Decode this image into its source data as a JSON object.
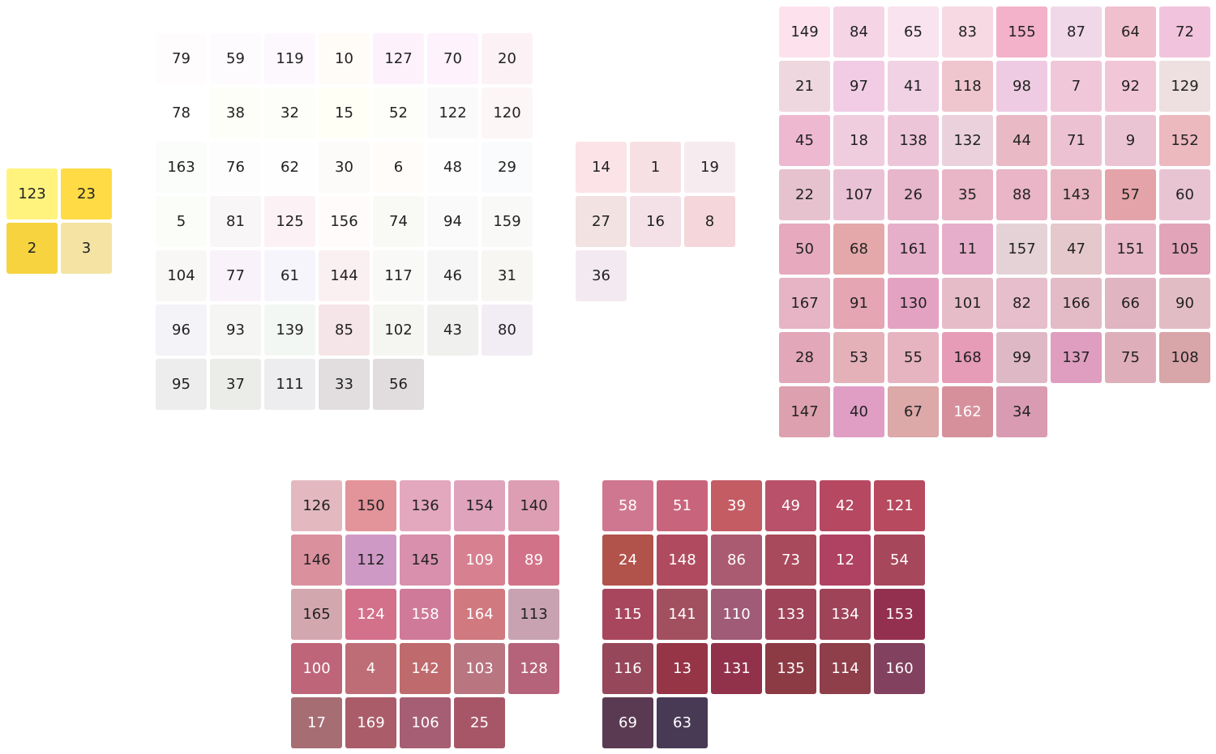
{
  "groups": [
    {
      "name": "yellow-group",
      "cells": [
        [
          {
            "label": "123",
            "color": "#FFF37E"
          },
          {
            "label": "23",
            "color": "#FFDB45"
          }
        ],
        [
          {
            "label": "2",
            "color": "#F6D33F"
          },
          {
            "label": "3",
            "color": "#F4E3A3"
          }
        ]
      ]
    },
    {
      "name": "neutral-group",
      "cells": [
        [
          {
            "label": "79",
            "color": "#FFFCFD"
          },
          {
            "label": "59",
            "color": "#FEFBFE"
          },
          {
            "label": "119",
            "color": "#FCF8FE"
          },
          {
            "label": "10",
            "color": "#FFFBF7"
          },
          {
            "label": "127",
            "color": "#FDF2FC"
          },
          {
            "label": "70",
            "color": "#FEF2FC"
          },
          {
            "label": "20",
            "color": "#FCF2F5"
          }
        ],
        [
          {
            "label": "78",
            "color": "#FFFFFF"
          },
          {
            "label": "38",
            "color": "#FDFEF7"
          },
          {
            "label": "32",
            "color": "#FDFDF9"
          },
          {
            "label": "15",
            "color": "#FFFFF6"
          },
          {
            "label": "52",
            "color": "#FDFDF9"
          },
          {
            "label": "122",
            "color": "#FAFAFA"
          },
          {
            "label": "120",
            "color": "#FDF6F6"
          }
        ],
        [
          {
            "label": "163",
            "color": "#FAFDFA"
          },
          {
            "label": "76",
            "color": "#FDFDFE"
          },
          {
            "label": "62",
            "color": "#FEFEFE"
          },
          {
            "label": "30",
            "color": "#FCFBF9"
          },
          {
            "label": "6",
            "color": "#FFFCF9"
          },
          {
            "label": "48",
            "color": "#FDFDFD"
          },
          {
            "label": "29",
            "color": "#FAFBFC"
          }
        ],
        [
          {
            "label": "5",
            "color": "#FBFDF8"
          },
          {
            "label": "81",
            "color": "#F9F6F7"
          },
          {
            "label": "125",
            "color": "#FCF2F6"
          },
          {
            "label": "156",
            "color": "#FEFBFA"
          },
          {
            "label": "74",
            "color": "#F9FAF6"
          },
          {
            "label": "94",
            "color": "#FAFAFA"
          },
          {
            "label": "159",
            "color": "#F9FAF8"
          }
        ],
        [
          {
            "label": "104",
            "color": "#F9F7F5"
          },
          {
            "label": "77",
            "color": "#FAF2FB"
          },
          {
            "label": "61",
            "color": "#F6F5FC"
          },
          {
            "label": "144",
            "color": "#FBF0F1"
          },
          {
            "label": "117",
            "color": "#F9F9F7"
          },
          {
            "label": "46",
            "color": "#F6F6F6"
          },
          {
            "label": "31",
            "color": "#F7F6F3"
          }
        ],
        [
          {
            "label": "96",
            "color": "#F3F3F8"
          },
          {
            "label": "93",
            "color": "#F5F6F3"
          },
          {
            "label": "139",
            "color": "#F3F7F3"
          },
          {
            "label": "85",
            "color": "#F6E5E8"
          },
          {
            "label": "102",
            "color": "#F5F5F2"
          },
          {
            "label": "43",
            "color": "#F0F0EF"
          },
          {
            "label": "80",
            "color": "#F2EDF5"
          }
        ],
        [
          {
            "label": "95",
            "color": "#EDEDED"
          },
          {
            "label": "37",
            "color": "#EBEDE9"
          },
          {
            "label": "111",
            "color": "#EDEDEF"
          },
          {
            "label": "33",
            "color": "#E2DEDF"
          },
          {
            "label": "56",
            "color": "#E1DCDD"
          }
        ]
      ]
    },
    {
      "name": "pale-pink-group",
      "cells": [
        [
          {
            "label": "14",
            "color": "#FBE3E8"
          },
          {
            "label": "1",
            "color": "#F7E0E4"
          },
          {
            "label": "19",
            "color": "#F6ECEF"
          }
        ],
        [
          {
            "label": "27",
            "color": "#F2E2E2"
          },
          {
            "label": "16",
            "color": "#F4E0E7"
          },
          {
            "label": "8",
            "color": "#F4D6DB"
          }
        ],
        [
          {
            "label": "36",
            "color": "#F3E9F0"
          }
        ]
      ]
    },
    {
      "name": "pink-group",
      "cells": [
        [
          {
            "label": "149",
            "color": "#FDE2EE"
          },
          {
            "label": "84",
            "color": "#F5D4E6"
          },
          {
            "label": "65",
            "color": "#F9E3EE"
          },
          {
            "label": "83",
            "color": "#F7D9E3"
          },
          {
            "label": "155",
            "color": "#F3B2C9"
          },
          {
            "label": "87",
            "color": "#F0D8E9"
          },
          {
            "label": "64",
            "color": "#F1C0CE"
          },
          {
            "label": "72",
            "color": "#F2C3DC"
          }
        ],
        [
          {
            "label": "21",
            "color": "#EED7DF"
          },
          {
            "label": "97",
            "color": "#F1CCE4"
          },
          {
            "label": "41",
            "color": "#F1D1E4"
          },
          {
            "label": "118",
            "color": "#F0C6CE"
          },
          {
            "label": "98",
            "color": "#EECBE3"
          },
          {
            "label": "7",
            "color": "#F0C7D8"
          },
          {
            "label": "92",
            "color": "#F1C6D7"
          },
          {
            "label": "129",
            "color": "#EEDFE0"
          }
        ],
        [
          {
            "label": "45",
            "color": "#EDB8D0"
          },
          {
            "label": "18",
            "color": "#EFCCDE"
          },
          {
            "label": "138",
            "color": "#EDC5D8"
          },
          {
            "label": "132",
            "color": "#EAD1DB"
          },
          {
            "label": "44",
            "color": "#E9B9C6"
          },
          {
            "label": "71",
            "color": "#ECC2D3"
          },
          {
            "label": "9",
            "color": "#EBC4D4"
          },
          {
            "label": "152",
            "color": "#ECB9BE"
          }
        ],
        [
          {
            "label": "22",
            "color": "#E6C2CE"
          },
          {
            "label": "107",
            "color": "#EAC2D5"
          },
          {
            "label": "26",
            "color": "#E7B6CB"
          },
          {
            "label": "35",
            "color": "#E9B6C7"
          },
          {
            "label": "88",
            "color": "#E9B5C7"
          },
          {
            "label": "143",
            "color": "#E8B5C2"
          },
          {
            "label": "57",
            "color": "#E4A3A8"
          },
          {
            "label": "60",
            "color": "#E8C4D3"
          }
        ],
        [
          {
            "label": "50",
            "color": "#E6A9BD"
          },
          {
            "label": "68",
            "color": "#E4A8AB"
          },
          {
            "label": "161",
            "color": "#E6AFC9"
          },
          {
            "label": "11",
            "color": "#E6AECA"
          },
          {
            "label": "157",
            "color": "#E5D2D6"
          },
          {
            "label": "47",
            "color": "#E4C8CB"
          },
          {
            "label": "151",
            "color": "#E8B8C8"
          },
          {
            "label": "105",
            "color": "#E2A4B9"
          }
        ],
        [
          {
            "label": "167",
            "color": "#E6B4C4"
          },
          {
            "label": "91",
            "color": "#E5A5B2"
          },
          {
            "label": "130",
            "color": "#E4A2C3"
          },
          {
            "label": "101",
            "color": "#E7BCC9"
          },
          {
            "label": "82",
            "color": "#E7BECB"
          },
          {
            "label": "166",
            "color": "#E3BBC6"
          },
          {
            "label": "66",
            "color": "#E1B4C2"
          },
          {
            "label": "90",
            "color": "#E2BCC4"
          }
        ],
        [
          {
            "label": "28",
            "color": "#E3A7BA"
          },
          {
            "label": "53",
            "color": "#E4B1B9"
          },
          {
            "label": "55",
            "color": "#E6B3C0"
          },
          {
            "label": "168",
            "color": "#E69BB6"
          },
          {
            "label": "99",
            "color": "#DFB8C5"
          },
          {
            "label": "137",
            "color": "#DF9EC0"
          },
          {
            "label": "75",
            "color": "#DEAFBA"
          },
          {
            "label": "108",
            "color": "#D8A5A9"
          }
        ],
        [
          {
            "label": "147",
            "color": "#DDA0AE"
          },
          {
            "label": "40",
            "color": "#E09EC5"
          },
          {
            "label": "67",
            "color": "#DCA8A8"
          },
          {
            "label": "162",
            "color": "#D6909C",
            "light": true
          },
          {
            "label": "34",
            "color": "#D99BB1"
          }
        ]
      ]
    },
    {
      "name": "rose-group",
      "cells": [
        [
          {
            "label": "126",
            "color": "#E3B9BF"
          },
          {
            "label": "150",
            "color": "#E3939A"
          },
          {
            "label": "136",
            "color": "#E3A7BE"
          },
          {
            "label": "154",
            "color": "#DFA4BC"
          },
          {
            "label": "140",
            "color": "#DD9EB4"
          }
        ],
        [
          {
            "label": "146",
            "color": "#DB909E"
          },
          {
            "label": "112",
            "color": "#CF99C6"
          },
          {
            "label": "145",
            "color": "#D990AC"
          },
          {
            "label": "109",
            "color": "#D68090",
            "light": true
          },
          {
            "label": "89",
            "color": "#D27289",
            "light": true
          }
        ],
        [
          {
            "label": "165",
            "color": "#D3A7AE"
          },
          {
            "label": "124",
            "color": "#D3708A",
            "light": true
          },
          {
            "label": "158",
            "color": "#CF7A98",
            "light": true
          },
          {
            "label": "164",
            "color": "#D0797F",
            "light": true
          },
          {
            "label": "113",
            "color": "#C8A2B1"
          }
        ],
        [
          {
            "label": "100",
            "color": "#BF6579",
            "light": true
          },
          {
            "label": "4",
            "color": "#BE6D76",
            "light": true
          },
          {
            "label": "142",
            "color": "#BF6A6C",
            "light": true
          },
          {
            "label": "103",
            "color": "#B97580",
            "light": true
          },
          {
            "label": "128",
            "color": "#B5637A",
            "light": true
          }
        ],
        [
          {
            "label": "17",
            "color": "#A66E73",
            "light": true
          },
          {
            "label": "169",
            "color": "#AA5D69",
            "light": true
          },
          {
            "label": "106",
            "color": "#A65E75",
            "light": true
          },
          {
            "label": "25",
            "color": "#A75668",
            "light": true
          }
        ]
      ]
    },
    {
      "name": "dark-rose-group",
      "cells": [
        [
          {
            "label": "58",
            "color": "#CF7791",
            "light": true
          },
          {
            "label": "51",
            "color": "#C8657C",
            "light": true
          },
          {
            "label": "39",
            "color": "#C45C64",
            "light": true
          },
          {
            "label": "49",
            "color": "#B85169",
            "light": true
          },
          {
            "label": "42",
            "color": "#B64861",
            "light": true
          },
          {
            "label": "121",
            "color": "#B74A5E",
            "light": true
          }
        ],
        [
          {
            "label": "24",
            "color": "#B1524B",
            "light": true
          },
          {
            "label": "148",
            "color": "#B04B5F",
            "light": true
          },
          {
            "label": "86",
            "color": "#AB5B71",
            "light": true
          },
          {
            "label": "73",
            "color": "#A94A5C",
            "light": true
          },
          {
            "label": "12",
            "color": "#AF4163",
            "light": true
          },
          {
            "label": "54",
            "color": "#A7475C",
            "light": true
          }
        ],
        [
          {
            "label": "115",
            "color": "#A8465E",
            "light": true
          },
          {
            "label": "141",
            "color": "#A2505F",
            "light": true
          },
          {
            "label": "110",
            "color": "#A05B76",
            "light": true
          },
          {
            "label": "133",
            "color": "#9F4358",
            "light": true
          },
          {
            "label": "134",
            "color": "#9F4358",
            "light": true
          },
          {
            "label": "153",
            "color": "#933050",
            "light": true
          }
        ],
        [
          {
            "label": "116",
            "color": "#97475A",
            "light": true
          },
          {
            "label": "13",
            "color": "#963546",
            "light": true
          },
          {
            "label": "131",
            "color": "#92324A",
            "light": true
          },
          {
            "label": "135",
            "color": "#8C3B45",
            "light": true
          },
          {
            "label": "114",
            "color": "#8E3F49",
            "light": true
          },
          {
            "label": "160",
            "color": "#82415E",
            "light": true
          }
        ],
        [
          {
            "label": "69",
            "color": "#5A3A52",
            "light": true
          },
          {
            "label": "63",
            "color": "#483A55",
            "light": true
          }
        ]
      ]
    }
  ]
}
